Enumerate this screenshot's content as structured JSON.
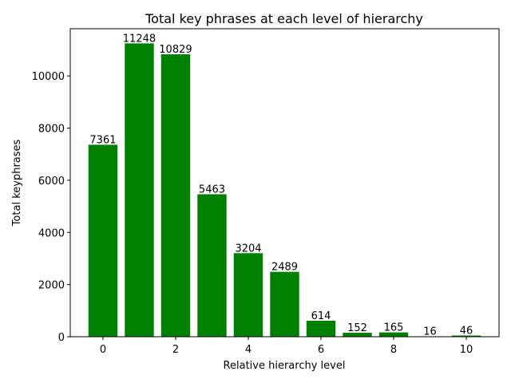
{
  "chart_data": {
    "type": "bar",
    "title": "Total key phrases at each level of hierarchy",
    "xlabel": "Relative hierarchy level",
    "ylabel": "Total keyphrases",
    "categories": [
      0,
      1,
      2,
      3,
      4,
      5,
      6,
      7,
      8,
      9,
      10
    ],
    "values": [
      7361,
      11248,
      10829,
      5463,
      3204,
      2489,
      614,
      152,
      165,
      16,
      46
    ],
    "value_labels": [
      "7361",
      "11248",
      "10829",
      "5463",
      "3204",
      "2489",
      "614",
      "152",
      "165",
      "16",
      "46"
    ],
    "xticks": [
      "0",
      "2",
      "4",
      "6",
      "8",
      "10"
    ],
    "xtick_values": [
      0,
      2,
      4,
      6,
      8,
      10
    ],
    "yticks": [
      "0",
      "2000",
      "4000",
      "6000",
      "8000",
      "10000"
    ],
    "ytick_values": [
      0,
      2000,
      4000,
      6000,
      8000,
      10000
    ],
    "xlim": [
      -0.9,
      10.9
    ],
    "ylim": [
      0,
      11810.4
    ],
    "bar_color": "#008000",
    "grid": false,
    "legend": "none"
  }
}
